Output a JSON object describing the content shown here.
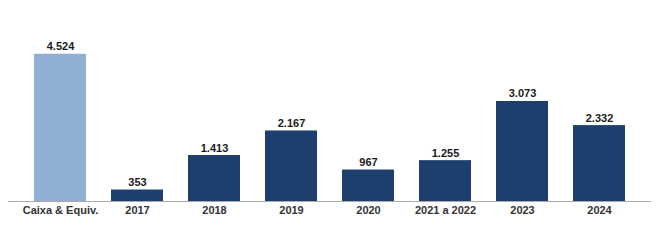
{
  "chart_data": {
    "type": "bar",
    "categories": [
      "Caixa & Equiv.",
      "2017",
      "2018",
      "2019",
      "2020",
      "2021 a 2022",
      "2023",
      "2024"
    ],
    "values": [
      4.524,
      0.353,
      1.413,
      2.167,
      0.967,
      1.255,
      3.073,
      2.332
    ],
    "value_labels": [
      "4.524",
      "353",
      "1.413",
      "2.167",
      "967",
      "1.255",
      "3.073",
      "2.332"
    ],
    "colors": [
      "#8fafd4",
      "#1c3f6e",
      "#1c3f6e",
      "#1c3f6e",
      "#1c3f6e",
      "#1c3f6e",
      "#1c3f6e",
      "#1c3f6e"
    ],
    "ylim": [
      0,
      5.5
    ],
    "data_labels": true,
    "tick_labels": "x"
  }
}
